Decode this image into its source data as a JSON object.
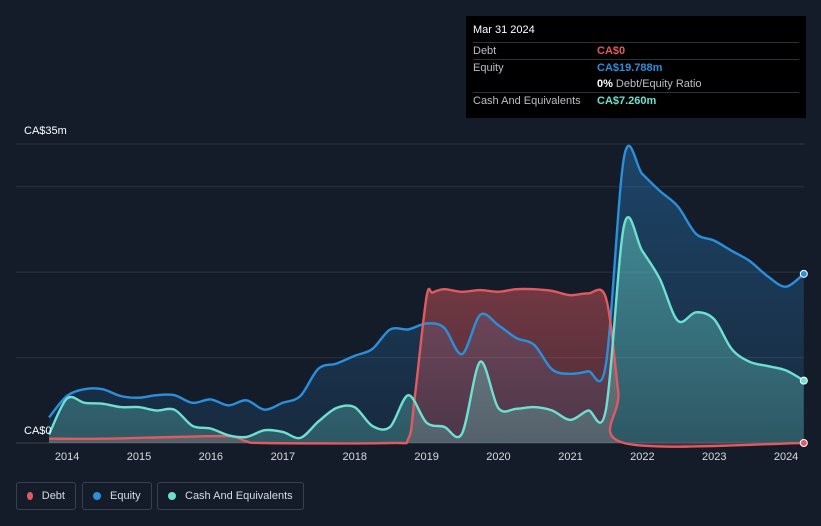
{
  "tooltip": {
    "date": "Mar 31 2024",
    "rows": [
      {
        "label": "Debt",
        "value": "CA$0"
      },
      {
        "label": "Equity",
        "value": "CA$19.788m"
      },
      {
        "label": "",
        "value": "0%",
        "suffix": "Debt/Equity Ratio"
      },
      {
        "label": "Cash And Equivalents",
        "value": "CA$7.260m"
      }
    ]
  },
  "legend": [
    {
      "name": "Debt",
      "color": "#e05a61"
    },
    {
      "name": "Equity",
      "color": "#2b8fdc"
    },
    {
      "name": "Cash And Equivalents",
      "color": "#6de0d2"
    }
  ],
  "colors": {
    "debt": "#e05a61",
    "equity": "#2b8fdc",
    "cash": "#6de0d2",
    "background": "#151c29"
  },
  "chart_data": {
    "type": "area",
    "y_unit": "CA$ millions",
    "ylim": [
      0,
      35
    ],
    "y_tick_labels": [
      "CA$0",
      "CA$35m"
    ],
    "x_tick_labels": [
      "2014",
      "2015",
      "2016",
      "2017",
      "2018",
      "2019",
      "2020",
      "2021",
      "2022",
      "2023",
      "2024"
    ],
    "xlim": [
      "2013-10-01",
      "2024-04-01"
    ],
    "grid": true,
    "series": [
      {
        "name": "Debt",
        "points": [
          [
            "2013-10-01",
            0.5
          ],
          [
            "2014-06-30",
            0.5
          ],
          [
            "2015-06-30",
            0.7
          ],
          [
            "2016-03-31",
            0.8
          ],
          [
            "2016-06-30",
            0.2
          ],
          [
            "2016-09-30",
            0.0
          ],
          [
            "2018-06-30",
            0.0
          ],
          [
            "2018-09-30",
            0.5
          ],
          [
            "2018-10-31",
            5.0
          ],
          [
            "2018-12-31",
            17.0
          ],
          [
            "2019-01-31",
            17.6
          ],
          [
            "2019-03-31",
            18.0
          ],
          [
            "2019-06-30",
            17.7
          ],
          [
            "2019-09-30",
            17.9
          ],
          [
            "2019-12-31",
            17.7
          ],
          [
            "2020-03-31",
            18.0
          ],
          [
            "2020-06-30",
            18.0
          ],
          [
            "2020-09-30",
            17.8
          ],
          [
            "2020-12-31",
            17.3
          ],
          [
            "2021-03-31",
            17.5
          ],
          [
            "2021-06-30",
            17.0
          ],
          [
            "2021-08-31",
            6.0
          ],
          [
            "2021-09-30",
            0.0
          ],
          [
            "2024-03-31",
            0.0
          ]
        ]
      },
      {
        "name": "Equity",
        "points": [
          [
            "2013-10-01",
            3.0
          ],
          [
            "2013-12-31",
            5.5
          ],
          [
            "2014-03-31",
            6.3
          ],
          [
            "2014-06-30",
            6.3
          ],
          [
            "2014-09-30",
            5.5
          ],
          [
            "2014-12-31",
            5.3
          ],
          [
            "2015-03-31",
            5.6
          ],
          [
            "2015-06-30",
            5.6
          ],
          [
            "2015-09-30",
            4.7
          ],
          [
            "2015-12-31",
            5.1
          ],
          [
            "2016-03-31",
            4.4
          ],
          [
            "2016-06-30",
            5.0
          ],
          [
            "2016-09-30",
            3.9
          ],
          [
            "2016-12-31",
            4.7
          ],
          [
            "2017-03-31",
            5.5
          ],
          [
            "2017-06-30",
            8.7
          ],
          [
            "2017-09-30",
            9.3
          ],
          [
            "2017-12-31",
            10.2
          ],
          [
            "2018-03-31",
            11.0
          ],
          [
            "2018-06-30",
            13.3
          ],
          [
            "2018-09-30",
            13.3
          ],
          [
            "2018-12-31",
            14.0
          ],
          [
            "2019-03-31",
            13.5
          ],
          [
            "2019-06-30",
            10.4
          ],
          [
            "2019-09-30",
            15.0
          ],
          [
            "2019-12-31",
            13.8
          ],
          [
            "2020-03-31",
            12.3
          ],
          [
            "2020-06-30",
            11.5
          ],
          [
            "2020-09-30",
            8.6
          ],
          [
            "2020-12-31",
            8.1
          ],
          [
            "2021-03-31",
            8.4
          ],
          [
            "2021-06-30",
            9.2
          ],
          [
            "2021-09-30",
            33.5
          ],
          [
            "2021-12-31",
            31.5
          ],
          [
            "2022-03-31",
            29.5
          ],
          [
            "2022-06-30",
            27.7
          ],
          [
            "2022-09-30",
            24.5
          ],
          [
            "2022-12-31",
            23.7
          ],
          [
            "2023-03-31",
            22.5
          ],
          [
            "2023-06-30",
            21.3
          ],
          [
            "2023-09-30",
            19.5
          ],
          [
            "2023-12-31",
            18.3
          ],
          [
            "2024-03-31",
            19.8
          ]
        ]
      },
      {
        "name": "Cash And Equivalents",
        "points": [
          [
            "2013-10-01",
            1.0
          ],
          [
            "2013-12-31",
            5.2
          ],
          [
            "2014-03-31",
            4.7
          ],
          [
            "2014-06-30",
            4.6
          ],
          [
            "2014-09-30",
            4.2
          ],
          [
            "2014-12-31",
            4.2
          ],
          [
            "2015-03-31",
            3.8
          ],
          [
            "2015-06-30",
            3.9
          ],
          [
            "2015-09-30",
            2.0
          ],
          [
            "2015-12-31",
            1.7
          ],
          [
            "2016-03-31",
            0.9
          ],
          [
            "2016-06-30",
            0.7
          ],
          [
            "2016-09-30",
            1.5
          ],
          [
            "2016-12-31",
            1.3
          ],
          [
            "2017-03-31",
            0.6
          ],
          [
            "2017-06-30",
            2.5
          ],
          [
            "2017-09-30",
            4.1
          ],
          [
            "2017-12-31",
            4.2
          ],
          [
            "2018-03-31",
            2.0
          ],
          [
            "2018-06-30",
            1.9
          ],
          [
            "2018-09-30",
            5.6
          ],
          [
            "2018-12-31",
            2.4
          ],
          [
            "2019-03-31",
            1.9
          ],
          [
            "2019-06-30",
            1.1
          ],
          [
            "2019-09-30",
            9.5
          ],
          [
            "2019-12-31",
            4.1
          ],
          [
            "2020-03-31",
            4.0
          ],
          [
            "2020-06-30",
            4.2
          ],
          [
            "2020-09-30",
            3.8
          ],
          [
            "2020-12-31",
            2.7
          ],
          [
            "2021-03-31",
            3.8
          ],
          [
            "2021-06-30",
            3.9
          ],
          [
            "2021-09-30",
            25.5
          ],
          [
            "2021-12-31",
            22.5
          ],
          [
            "2022-03-31",
            19.2
          ],
          [
            "2022-06-30",
            14.3
          ],
          [
            "2022-09-30",
            15.3
          ],
          [
            "2022-12-31",
            14.5
          ],
          [
            "2023-03-31",
            11.0
          ],
          [
            "2023-06-30",
            9.5
          ],
          [
            "2023-09-30",
            9.0
          ],
          [
            "2023-12-31",
            8.5
          ],
          [
            "2024-03-31",
            7.3
          ]
        ]
      }
    ]
  }
}
